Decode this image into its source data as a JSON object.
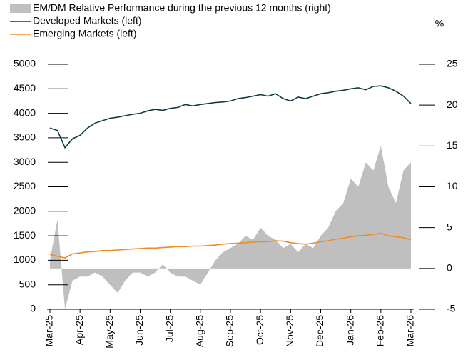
{
  "chart_data": {
    "type": "line",
    "y2_label": "%",
    "x": [
      0,
      0.25,
      0.5,
      0.75,
      1,
      1.25,
      1.5,
      1.75,
      2,
      2.25,
      2.5,
      2.75,
      3,
      3.25,
      3.5,
      3.75,
      4,
      4.25,
      4.5,
      4.75,
      5,
      5.25,
      5.5,
      5.75,
      6,
      6.25,
      6.5,
      6.75,
      7,
      7.25,
      7.5,
      7.75,
      8,
      8.25,
      8.5,
      8.75,
      9,
      9.25,
      9.5,
      9.75,
      10,
      10.25,
      10.5,
      10.75,
      11,
      11.25,
      11.5,
      11.75,
      12
    ],
    "xlim": [
      0,
      12
    ],
    "xticks": [
      {
        "value": 0,
        "label": "Mar-25"
      },
      {
        "value": 1,
        "label": "Apr-25"
      },
      {
        "value": 2,
        "label": "May-25"
      },
      {
        "value": 3,
        "label": "Jun-25"
      },
      {
        "value": 4,
        "label": "Jul-25"
      },
      {
        "value": 5,
        "label": "Aug-25"
      },
      {
        "value": 6,
        "label": "Sep-25"
      },
      {
        "value": 7,
        "label": "Oct-25"
      },
      {
        "value": 8,
        "label": "Nov-25"
      },
      {
        "value": 9,
        "label": "Dec-25"
      },
      {
        "value": 10,
        "label": "Jan-26"
      },
      {
        "value": 11,
        "label": "Feb-26"
      },
      {
        "value": 12,
        "label": "Mar-26"
      }
    ],
    "ylim": [
      0,
      5000
    ],
    "yticks": [
      0,
      500,
      1000,
      1500,
      2000,
      2500,
      3000,
      3500,
      4000,
      4500,
      5000
    ],
    "y2lim": [
      -5,
      25
    ],
    "y2ticks": [
      -5,
      0,
      5,
      10,
      15,
      20,
      25
    ],
    "series": [
      {
        "name": "EM/DM Relative Performance during the previous 12 months (right)",
        "kind": "area",
        "axis": "y2",
        "color": "#bfbfbf",
        "values": [
          1,
          6,
          -5,
          -1.5,
          -1,
          -1,
          -0.5,
          -1,
          -2,
          -3,
          -1.5,
          -0.5,
          -0.5,
          -1,
          -0.5,
          0.5,
          -0.5,
          -1,
          -1,
          -1.5,
          -2,
          -0.5,
          1,
          2,
          2.5,
          3,
          4,
          3.5,
          5,
          4,
          3.5,
          2.5,
          3,
          2,
          3,
          2.5,
          4,
          5,
          7,
          8,
          11,
          10,
          13,
          12,
          15,
          10,
          8,
          12,
          13
        ]
      },
      {
        "name": "Developed Markets (left)",
        "kind": "line",
        "color": "#0d3b3e",
        "values": [
          3700,
          3650,
          3300,
          3480,
          3550,
          3700,
          3800,
          3850,
          3900,
          3920,
          3950,
          3980,
          4000,
          4050,
          4080,
          4060,
          4100,
          4120,
          4180,
          4150,
          4180,
          4200,
          4220,
          4230,
          4250,
          4300,
          4320,
          4350,
          4380,
          4350,
          4400,
          4300,
          4250,
          4330,
          4300,
          4350,
          4400,
          4420,
          4450,
          4470,
          4500,
          4520,
          4480,
          4550,
          4560,
          4520,
          4450,
          4350,
          4200
        ]
      },
      {
        "name": "Emerging Markets (left)",
        "kind": "line",
        "color": "#f08a24",
        "values": [
          1120,
          1080,
          1050,
          1130,
          1150,
          1170,
          1180,
          1200,
          1200,
          1210,
          1220,
          1230,
          1240,
          1250,
          1250,
          1260,
          1270,
          1280,
          1280,
          1290,
          1290,
          1300,
          1310,
          1330,
          1340,
          1350,
          1360,
          1370,
          1380,
          1380,
          1400,
          1390,
          1360,
          1340,
          1330,
          1350,
          1380,
          1400,
          1430,
          1450,
          1480,
          1500,
          1510,
          1530,
          1550,
          1500,
          1480,
          1460,
          1420
        ]
      }
    ]
  }
}
